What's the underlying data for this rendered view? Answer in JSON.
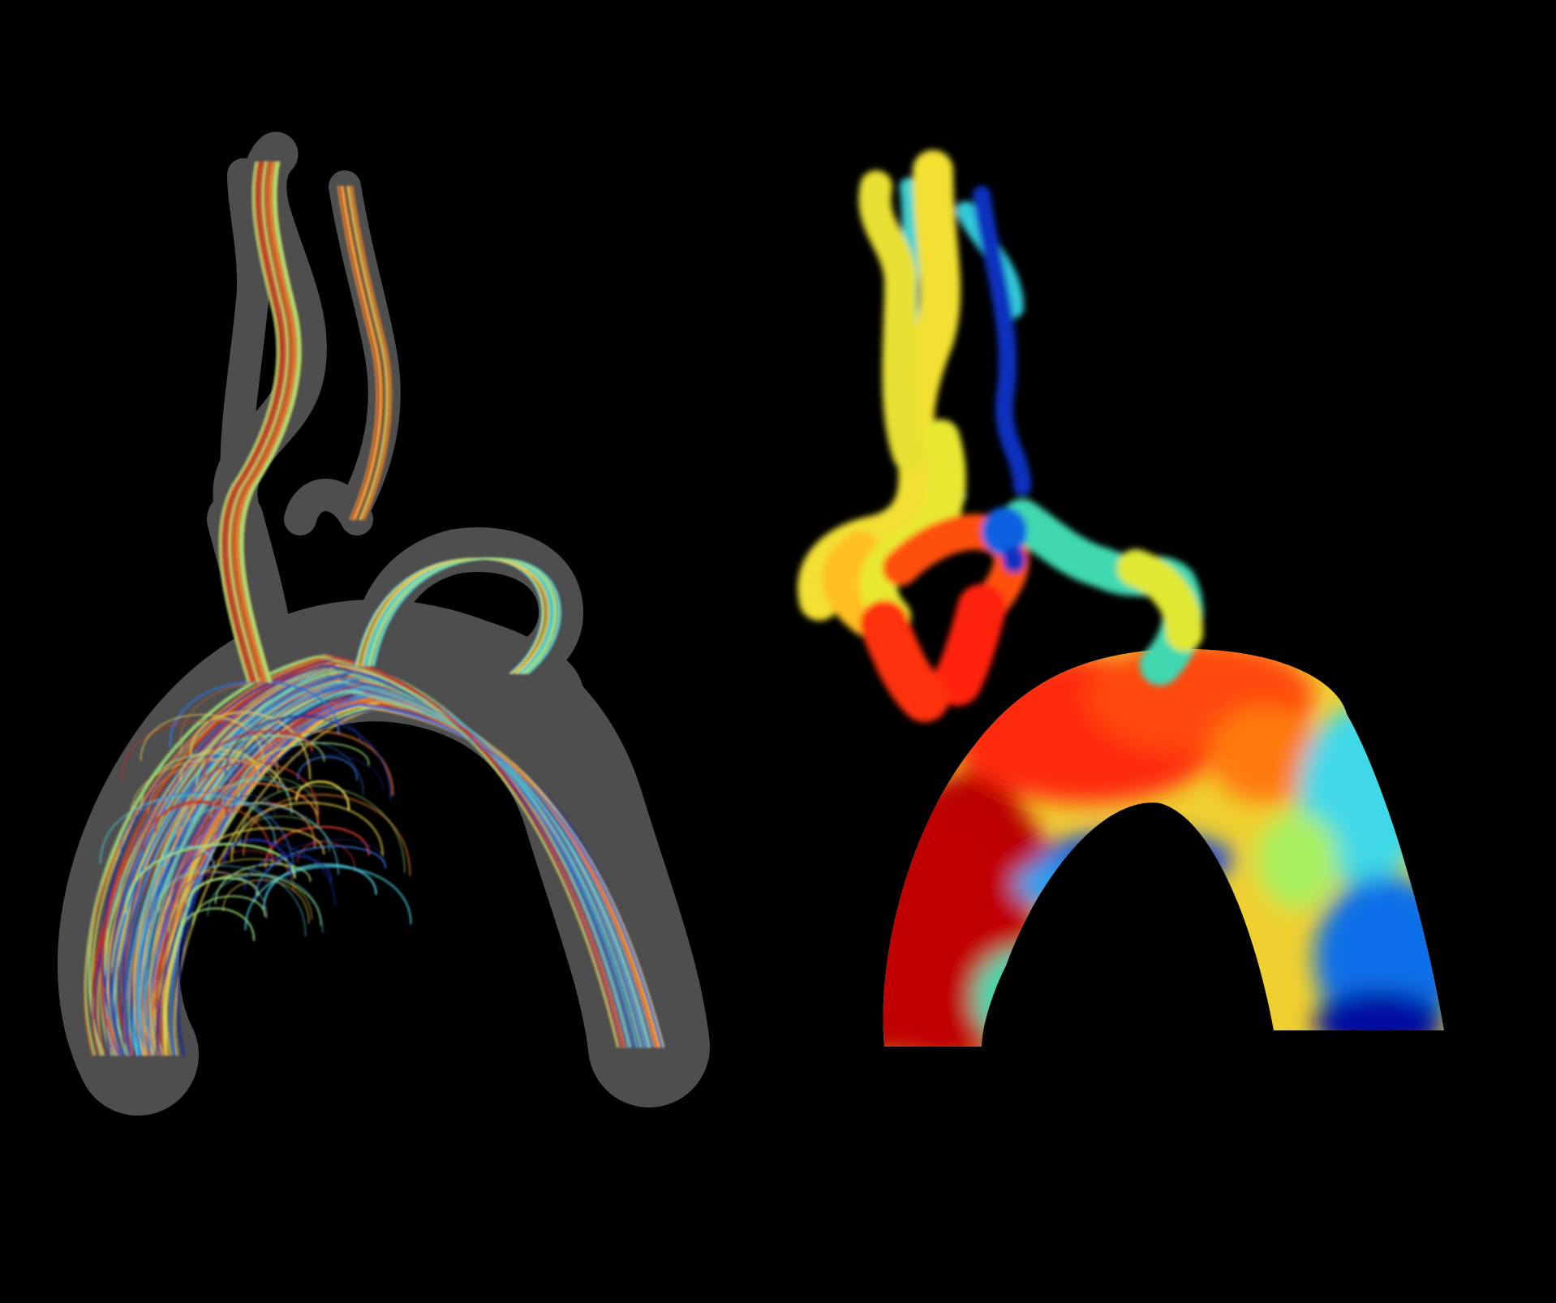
{
  "figure": {
    "background": "#000000",
    "panels": [
      {
        "name": "streamline-render",
        "vessel_shell_color": "#5a5a5a",
        "streamline_palette": [
          "#1a2a9a",
          "#2f6fd0",
          "#48c8d8",
          "#9fe07a",
          "#e8d04a",
          "#e07a2a",
          "#c0322a"
        ]
      },
      {
        "name": "volume-render",
        "colormap": [
          "#00008a",
          "#0060e0",
          "#20d0f0",
          "#a8f060",
          "#f0f020",
          "#ff9010",
          "#e81010",
          "#a00000"
        ]
      }
    ]
  }
}
